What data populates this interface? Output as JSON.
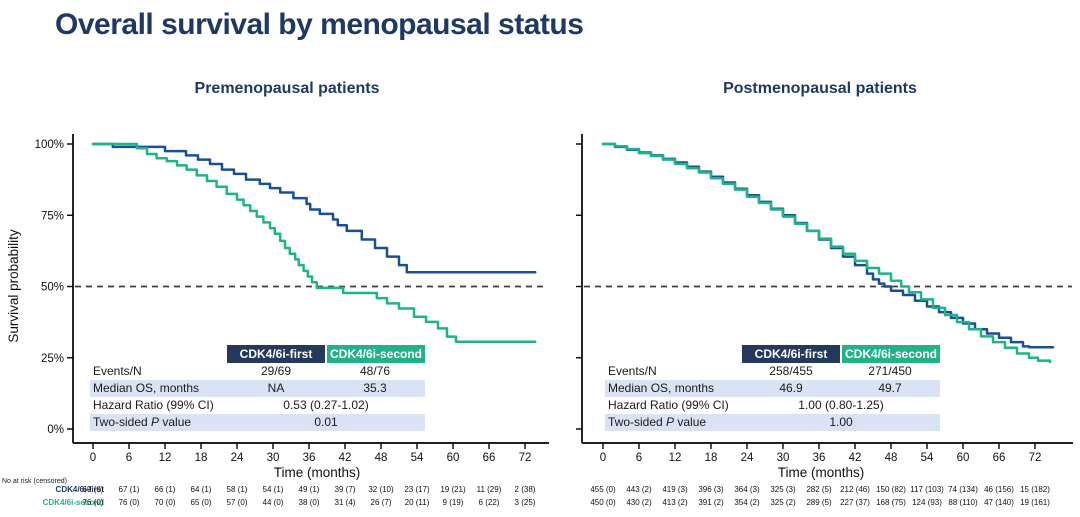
{
  "title": "Overall survival by menopausal status",
  "colors": {
    "title_navy": "#1F3864",
    "curve_blue": "#1A5093",
    "curve_green": "#1FB488",
    "badge_navy": "#24395B",
    "badge_green": "#21B287",
    "row_shade": "#DAE3F3"
  },
  "axis": {
    "x_label": "Time (months)",
    "y_label": "Survival probability",
    "x_ticks": [
      0,
      6,
      12,
      18,
      24,
      30,
      36,
      42,
      48,
      54,
      60,
      66,
      72
    ],
    "y_tick_labels": [
      "100%",
      "75%",
      "50%",
      "25%",
      "0%"
    ]
  },
  "panels": [
    {
      "title": "Premenopausal patients",
      "stats": {
        "col1_header": "CDK4/6i-first",
        "col2_header": "CDK4/6i-second",
        "rows": [
          {
            "label": "Events/N",
            "v1": "29/69",
            "v2": "48/76"
          },
          {
            "label": "Median OS, months",
            "v1": "NA",
            "v2": "35.3"
          },
          {
            "label": "Hazard Ratio (99% CI)",
            "merged": "0.53 (0.27-1.02)"
          },
          {
            "label_pre": "Two-sided ",
            "label_italic": "P",
            "label_post": " value",
            "merged": "0.01"
          }
        ]
      }
    },
    {
      "title": "Postmenopausal patients",
      "stats": {
        "col1_header": "CDK4/6i-first",
        "col2_header": "CDK4/6i-second",
        "rows": [
          {
            "label": "Events/N",
            "v1": "258/455",
            "v2": "271/450"
          },
          {
            "label": "Median OS, months",
            "v1": "46.9",
            "v2": "49.7"
          },
          {
            "label": "Hazard Ratio (99% CI)",
            "merged": "1.00 (0.80-1.25)"
          },
          {
            "label_pre": "Two-sided ",
            "label_italic": "P",
            "label_post": " value",
            "merged": "1.00"
          }
        ]
      }
    }
  ],
  "at_risk": {
    "heading": "No at risk (censored)",
    "row_labels": [
      "CDK4/6i-first",
      "CDK4/6i-second"
    ],
    "premenopausal": {
      "first": [
        "69 (0)",
        "67 (1)",
        "66 (1)",
        "64 (1)",
        "58 (1)",
        "54 (1)",
        "49 (1)",
        "39 (7)",
        "32 (10)",
        "23 (17)",
        "19 (21)",
        "11 (29)",
        "2 (38)"
      ],
      "second": [
        "76 (0)",
        "76 (0)",
        "70 (0)",
        "65 (0)",
        "57 (0)",
        "44 (0)",
        "38 (0)",
        "31 (4)",
        "26 (7)",
        "20 (11)",
        "9 (19)",
        "6 (22)",
        "3 (25)"
      ]
    },
    "postmenopausal": {
      "first": [
        "455 (0)",
        "443 (2)",
        "419 (3)",
        "396 (3)",
        "364 (3)",
        "325 (3)",
        "282 (5)",
        "212 (46)",
        "150 (82)",
        "117 (103)",
        "74 (134)",
        "46 (156)",
        "15 (182)"
      ],
      "second": [
        "450 (0)",
        "430 (2)",
        "413 (2)",
        "391 (2)",
        "354 (2)",
        "325 (2)",
        "289 (5)",
        "227 (37)",
        "168 (75)",
        "124 (93)",
        "88 (110)",
        "47 (140)",
        "19 (161)"
      ]
    }
  },
  "chart_data": [
    {
      "type": "line",
      "subtype": "kaplan-meier-step",
      "title": "Premenopausal patients",
      "xlabel": "Time (months)",
      "ylabel": "Survival probability",
      "xlim": [
        0,
        76
      ],
      "ylim": [
        0,
        100
      ],
      "x_ticks": [
        0,
        6,
        12,
        18,
        24,
        30,
        36,
        42,
        48,
        54,
        60,
        66,
        72
      ],
      "y_ticks": [
        0,
        25,
        50,
        75,
        100
      ],
      "reference_line_y": 50,
      "grid": false,
      "series": [
        {
          "name": "CDK4/6i-first",
          "color": "#1A5093",
          "steps": [
            [
              0,
              100
            ],
            [
              3.3,
              99
            ],
            [
              12,
              97.5
            ],
            [
              15.5,
              96
            ],
            [
              17.5,
              94.5
            ],
            [
              19.5,
              93
            ],
            [
              21.5,
              91
            ],
            [
              23.5,
              89.5
            ],
            [
              25.5,
              87.5
            ],
            [
              27.8,
              86
            ],
            [
              29.5,
              84.5
            ],
            [
              31.2,
              83
            ],
            [
              33.4,
              81
            ],
            [
              35.6,
              79
            ],
            [
              36.2,
              77
            ],
            [
              37.8,
              75.5
            ],
            [
              40,
              73.5
            ],
            [
              40.8,
              71.5
            ],
            [
              42.3,
              69.5
            ],
            [
              44.8,
              66.5
            ],
            [
              47,
              63.5
            ],
            [
              49,
              60.5
            ],
            [
              51,
              57.5
            ],
            [
              52.3,
              55
            ],
            [
              73.7,
              55
            ]
          ]
        },
        {
          "name": "CDK4/6i-second",
          "color": "#1FB488",
          "steps": [
            [
              0,
              100
            ],
            [
              7.3,
              98.5
            ],
            [
              9,
              96.5
            ],
            [
              10.6,
              95
            ],
            [
              12.3,
              94
            ],
            [
              14,
              92.5
            ],
            [
              15.6,
              91
            ],
            [
              17.3,
              89
            ],
            [
              19,
              87
            ],
            [
              20.6,
              85
            ],
            [
              22.3,
              82.5
            ],
            [
              24,
              80.5
            ],
            [
              25.1,
              78.5
            ],
            [
              26.2,
              76.5
            ],
            [
              27.3,
              74.5
            ],
            [
              28.4,
              72.5
            ],
            [
              29.5,
              70.5
            ],
            [
              30.3,
              68.5
            ],
            [
              31.2,
              66
            ],
            [
              32,
              63.5
            ],
            [
              32.8,
              61.5
            ],
            [
              33.7,
              59.5
            ],
            [
              34.3,
              57.5
            ],
            [
              35.1,
              55.5
            ],
            [
              35.8,
              53.5
            ],
            [
              36.5,
              51.5
            ],
            [
              37.3,
              49.5
            ],
            [
              41.7,
              47.7
            ],
            [
              47.3,
              45.9
            ],
            [
              49,
              44.1
            ],
            [
              51,
              42.3
            ],
            [
              53.5,
              39.4
            ],
            [
              55.5,
              37.6
            ],
            [
              57.5,
              35.3
            ],
            [
              59,
              32.4
            ],
            [
              60.5,
              30.6
            ],
            [
              73.7,
              30.6
            ]
          ]
        }
      ]
    },
    {
      "type": "line",
      "subtype": "kaplan-meier-step",
      "title": "Postmenopausal patients",
      "xlabel": "Time (months)",
      "ylabel": "Survival probability",
      "xlim": [
        0,
        76
      ],
      "ylim": [
        0,
        100
      ],
      "x_ticks": [
        0,
        6,
        12,
        18,
        24,
        30,
        36,
        42,
        48,
        54,
        60,
        66,
        72
      ],
      "y_ticks": [
        0,
        25,
        50,
        75,
        100
      ],
      "reference_line_y": 50,
      "grid": false,
      "series": [
        {
          "name": "CDK4/6i-first",
          "color": "#1A5093",
          "steps": [
            [
              0,
              100
            ],
            [
              2,
              99
            ],
            [
              4,
              98
            ],
            [
              6,
              97
            ],
            [
              8,
              96
            ],
            [
              10,
              94.8
            ],
            [
              12,
              93.5
            ],
            [
              14,
              92
            ],
            [
              16,
              90.3
            ],
            [
              18,
              88.5
            ],
            [
              20,
              86.5
            ],
            [
              22,
              84.3
            ],
            [
              24,
              82
            ],
            [
              26,
              79.7
            ],
            [
              28,
              77.3
            ],
            [
              30,
              75
            ],
            [
              32,
              72.3
            ],
            [
              34,
              69.5
            ],
            [
              36,
              66.5
            ],
            [
              38,
              63.5
            ],
            [
              40,
              60.5
            ],
            [
              42,
              57.5
            ],
            [
              44,
              54.5
            ],
            [
              45,
              52.5
            ],
            [
              46,
              51
            ],
            [
              46.9,
              50
            ],
            [
              48,
              48.5
            ],
            [
              50,
              47
            ],
            [
              52,
              45
            ],
            [
              54,
              43
            ],
            [
              56,
              41
            ],
            [
              58,
              39
            ],
            [
              60,
              37
            ],
            [
              62,
              35
            ],
            [
              64,
              33.5
            ],
            [
              66,
              32
            ],
            [
              68,
              30.5
            ],
            [
              70,
              29
            ],
            [
              71,
              28.7
            ],
            [
              75,
              28.7
            ]
          ]
        },
        {
          "name": "CDK4/6i-second",
          "color": "#1FB488",
          "steps": [
            [
              0,
              100
            ],
            [
              2,
              99.2
            ],
            [
              4,
              98.2
            ],
            [
              6,
              96.8
            ],
            [
              8,
              95.8
            ],
            [
              10,
              94.5
            ],
            [
              12,
              93
            ],
            [
              14,
              91.5
            ],
            [
              16,
              90
            ],
            [
              18,
              88
            ],
            [
              20,
              86
            ],
            [
              22,
              84
            ],
            [
              24,
              81.5
            ],
            [
              26,
              79.3
            ],
            [
              28,
              77
            ],
            [
              30,
              74.5
            ],
            [
              32,
              72
            ],
            [
              34,
              69.5
            ],
            [
              36,
              66.8
            ],
            [
              38,
              64
            ],
            [
              40,
              61.5
            ],
            [
              42,
              59
            ],
            [
              44,
              56.5
            ],
            [
              46,
              54.5
            ],
            [
              48,
              52
            ],
            [
              49.7,
              50
            ],
            [
              51,
              48
            ],
            [
              53,
              45.5
            ],
            [
              55,
              42.5
            ],
            [
              57,
              40
            ],
            [
              59,
              37.5
            ],
            [
              61,
              35
            ],
            [
              63,
              32.5
            ],
            [
              65,
              30.5
            ],
            [
              67,
              28.5
            ],
            [
              69,
              26.5
            ],
            [
              71,
              25
            ],
            [
              72.5,
              24
            ],
            [
              74.5,
              23.5
            ]
          ]
        }
      ]
    }
  ]
}
